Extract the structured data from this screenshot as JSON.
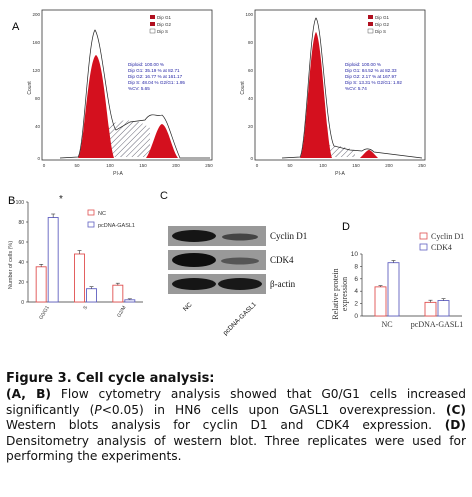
{
  "panel_labels": {
    "a": "A",
    "b": "B",
    "c": "C",
    "d": "D"
  },
  "flow_left": {
    "legend": [
      "Dip G1",
      "Dip G2",
      "Dip S"
    ],
    "stats": [
      "Diploid: 100.00 %",
      "Dip G1: 35.19 % at 82.71",
      "Dip G2: 16.77 % at 161.17",
      "Dip S: 48.04 %    G2/G1: 1.95",
      "%CV: 5.65"
    ],
    "yticks": [
      "200",
      "160",
      "120",
      "80",
      "40",
      "0"
    ],
    "xticks": [
      "0",
      "50",
      "100",
      "150",
      "200",
      "250"
    ],
    "xlabel": "PI-A",
    "ylabel": "Count"
  },
  "flow_right": {
    "legend": [
      "Dip G1",
      "Dip G2",
      "Dip S"
    ],
    "stats": [
      "Diploid: 100.00 %",
      "Dip G1: 84.52 % at 82.33",
      "Dip G2: 2.17 % at 167.97",
      "Dip S: 13.31 %    G2/G1: 1.92",
      "%CV: 5.74"
    ],
    "yticks": [
      "100",
      "80",
      "60",
      "40",
      "20",
      "0"
    ],
    "xticks": [
      "0",
      "50",
      "100",
      "150",
      "200",
      "250"
    ],
    "xlabel": "PI-A",
    "ylabel": "Count"
  },
  "chart_data": [
    {
      "type": "bar",
      "panel": "B",
      "categories": [
        "G0/G1",
        "S",
        "G2/M"
      ],
      "series": [
        {
          "name": "NC",
          "values": [
            35.2,
            48.0,
            16.8
          ],
          "errors": [
            2.5,
            3.5,
            2.0
          ],
          "color": "#e05050"
        },
        {
          "name": "pcDNA-GASL1",
          "values": [
            84.5,
            13.3,
            2.2
          ],
          "errors": [
            3.5,
            2.0,
            1.0
          ],
          "color": "#6060c0"
        }
      ],
      "ylabel": "Number of cells (%)",
      "ylim": [
        0,
        100
      ],
      "yticks": [
        0,
        20,
        40,
        60,
        80,
        100
      ],
      "annotation": "*",
      "legend_position": "top-right"
    },
    {
      "type": "bar",
      "panel": "D",
      "categories": [
        "NC",
        "pcDNA-GASL1"
      ],
      "series": [
        {
          "name": "Cyclin D1",
          "values": [
            4.7,
            2.2
          ],
          "errors": [
            0.2,
            0.35
          ],
          "color": "#e05050"
        },
        {
          "name": "CDK4",
          "values": [
            8.6,
            2.5
          ],
          "errors": [
            0.35,
            0.3
          ],
          "color": "#6060c0"
        }
      ],
      "ylabel": "Relative protein expression",
      "ylim": [
        0,
        10
      ],
      "yticks": [
        0,
        2,
        4,
        6,
        8,
        10
      ],
      "legend_position": "top-right"
    }
  ],
  "blot": {
    "bands": [
      "Cyclin D1",
      "CDK4",
      "β-actin"
    ],
    "lanes": [
      "NC",
      "pcDNA-GASL1"
    ]
  },
  "caption": {
    "title": "Figure 3. Cell cycle analysis:",
    "p1_label": "(A, B)",
    "p1_text_a": " Flow cytometry analysis showed that G0/G1 cells increased significantly (",
    "p1_italic": "P",
    "p1_text_b": "<0.05) in HN6 cells upon GASL1 overexpression. ",
    "p2_label": "(C)",
    "p2_text": " Western blots analysis for cyclin D1 and CDK4 expression. ",
    "p3_label": "(D)",
    "p3_text": " Densitometry analysis of western blot. Three replicates were used for performing the experiments."
  },
  "colors": {
    "nc": "#e05050",
    "gasl1": "#6060c0",
    "peak_red": "#d4101e",
    "stats_blue": "#1a1aa0"
  }
}
